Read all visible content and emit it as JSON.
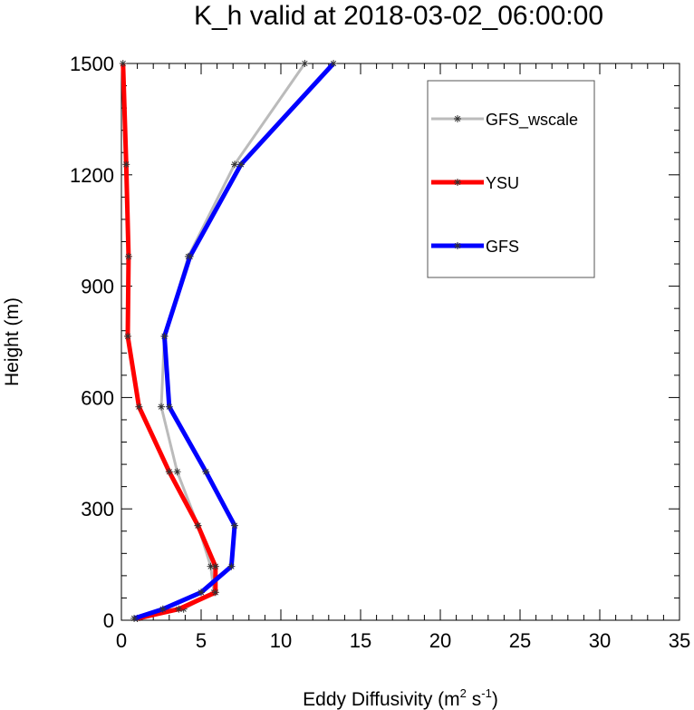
{
  "chart_data": {
    "type": "line",
    "title": "K_h valid at 2018-03-02_06:00:00",
    "xlabel": "Eddy Diffusivity (m",
    "xlabel_sup1": "2",
    "xlabel_mid": " s",
    "xlabel_sup2": "-1",
    "xlabel_end": ")",
    "ylabel": "Height (m)",
    "xlim": [
      0,
      35
    ],
    "ylim": [
      0,
      1500
    ],
    "xticks": [
      0,
      5,
      10,
      15,
      20,
      25,
      30,
      35
    ],
    "yticks": [
      0,
      300,
      600,
      900,
      1200,
      1500
    ],
    "legend_position": "top-right",
    "grid": false,
    "series": [
      {
        "name": "GFS_wscale",
        "color": "#bbbbbb",
        "markers": true,
        "points": [
          [
            1.0,
            5
          ],
          [
            3.9,
            30
          ],
          [
            5.8,
            75
          ],
          [
            5.6,
            145
          ],
          [
            4.8,
            255
          ],
          [
            3.5,
            400
          ],
          [
            2.5,
            575
          ],
          [
            2.7,
            765
          ],
          [
            4.2,
            980
          ],
          [
            7.1,
            1228
          ],
          [
            11.5,
            1500
          ]
        ]
      },
      {
        "name": "YSU",
        "color": "#ff0000",
        "markers": true,
        "points": [
          [
            1.0,
            5
          ],
          [
            3.6,
            30
          ],
          [
            5.9,
            75
          ],
          [
            5.9,
            145
          ],
          [
            4.8,
            255
          ],
          [
            3.0,
            400
          ],
          [
            1.1,
            575
          ],
          [
            0.4,
            765
          ],
          [
            0.45,
            980
          ],
          [
            0.3,
            1228
          ],
          [
            0.1,
            1500
          ]
        ]
      },
      {
        "name": "GFS",
        "color": "#0000ff",
        "markers": true,
        "points": [
          [
            0.8,
            5
          ],
          [
            2.6,
            30
          ],
          [
            5.0,
            75
          ],
          [
            6.9,
            145
          ],
          [
            7.1,
            255
          ],
          [
            5.3,
            400
          ],
          [
            3.0,
            575
          ],
          [
            2.7,
            765
          ],
          [
            4.3,
            980
          ],
          [
            7.5,
            1228
          ],
          [
            13.3,
            1500
          ]
        ]
      }
    ]
  }
}
